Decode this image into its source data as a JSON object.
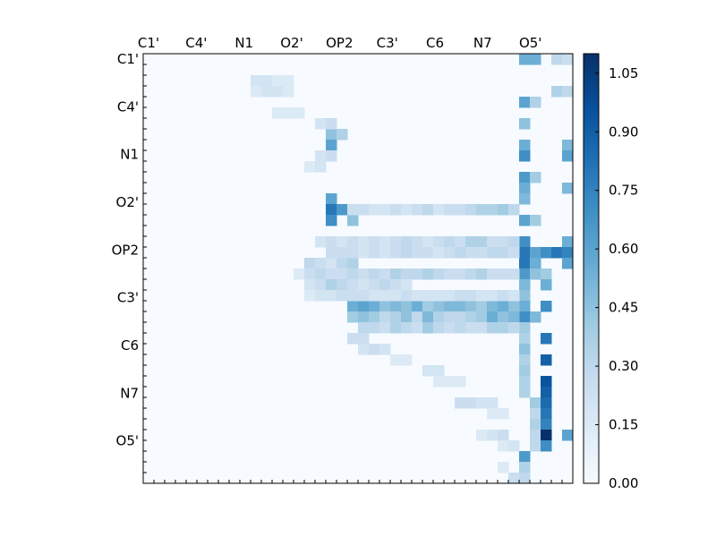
{
  "chart_data": {
    "type": "heatmap",
    "title": "",
    "xlabel": "",
    "ylabel": "",
    "size": 40,
    "atoms_per_label": 4.4444,
    "row_labels": [
      "C1'",
      "C4'",
      "N1",
      "O2'",
      "OP2",
      "C3'",
      "C6",
      "N7",
      "O5'"
    ],
    "col_labels": [
      "C1'",
      "C4'",
      "N1",
      "O2'",
      "OP2",
      "C3'",
      "C6",
      "N7",
      "O5'"
    ],
    "colormap": "Blues",
    "vmin": 0.0,
    "vmax": 1.1,
    "colorbar_ticks": [
      0.0,
      0.15,
      0.3,
      0.45,
      0.6,
      0.75,
      0.9,
      1.05
    ],
    "colorbar_tick_labels": [
      "0.00",
      "0.15",
      "0.30",
      "0.45",
      "0.60",
      "0.75",
      "0.90",
      "1.05"
    ],
    "cells": [
      [
        1,
        35,
        0.55
      ],
      [
        1,
        36,
        0.55
      ],
      [
        1,
        38,
        0.3
      ],
      [
        1,
        39,
        0.25
      ],
      [
        4,
        38,
        0.35
      ],
      [
        4,
        39,
        0.3
      ],
      [
        5,
        35,
        0.6
      ],
      [
        5,
        36,
        0.35
      ],
      [
        7,
        35,
        0.45
      ],
      [
        9,
        35,
        0.55
      ],
      [
        9,
        39,
        0.5
      ],
      [
        10,
        35,
        0.7
      ],
      [
        10,
        39,
        0.6
      ],
      [
        12,
        35,
        0.65
      ],
      [
        12,
        36,
        0.4
      ],
      [
        13,
        35,
        0.55
      ],
      [
        13,
        39,
        0.5
      ],
      [
        14,
        35,
        0.5
      ],
      [
        16,
        35,
        0.6
      ],
      [
        16,
        36,
        0.4
      ],
      [
        18,
        35,
        0.7
      ],
      [
        18,
        39,
        0.55
      ],
      [
        19,
        35,
        0.8
      ],
      [
        19,
        36,
        0.6
      ],
      [
        19,
        37,
        0.7
      ],
      [
        19,
        38,
        0.8
      ],
      [
        19,
        39,
        0.75
      ],
      [
        20,
        35,
        0.8
      ],
      [
        20,
        36,
        0.55
      ],
      [
        20,
        39,
        0.6
      ],
      [
        21,
        35,
        0.65
      ],
      [
        21,
        36,
        0.45
      ],
      [
        21,
        37,
        0.4
      ],
      [
        22,
        35,
        0.5
      ],
      [
        22,
        37,
        0.55
      ],
      [
        23,
        35,
        0.45
      ],
      [
        24,
        35,
        0.55
      ],
      [
        24,
        37,
        0.7
      ],
      [
        25,
        35,
        0.7
      ],
      [
        25,
        36,
        0.5
      ],
      [
        26,
        35,
        0.4
      ],
      [
        27,
        35,
        0.35
      ],
      [
        27,
        37,
        0.8
      ],
      [
        28,
        35,
        0.45
      ],
      [
        29,
        35,
        0.35
      ],
      [
        29,
        37,
        0.9
      ],
      [
        30,
        35,
        0.4
      ],
      [
        31,
        35,
        0.35
      ],
      [
        31,
        37,
        0.95
      ],
      [
        32,
        35,
        0.35
      ],
      [
        32,
        37,
        0.9
      ],
      [
        33,
        36,
        0.4
      ],
      [
        33,
        37,
        0.85
      ],
      [
        34,
        36,
        0.3
      ],
      [
        34,
        37,
        0.8
      ],
      [
        35,
        36,
        0.35
      ],
      [
        35,
        37,
        0.75
      ],
      [
        36,
        36,
        0.3
      ],
      [
        36,
        37,
        1.1
      ],
      [
        36,
        39,
        0.6
      ],
      [
        37,
        36,
        0.3
      ],
      [
        37,
        37,
        0.7
      ],
      [
        38,
        35,
        0.65
      ],
      [
        39,
        35,
        0.35
      ],
      [
        40,
        34,
        0.25
      ],
      [
        40,
        35,
        0.3
      ],
      [
        41,
        35,
        0.55
      ],
      [
        41,
        37,
        1.1
      ],
      [
        41,
        38,
        0.7
      ],
      [
        8,
        17,
        0.45
      ],
      [
        8,
        18,
        0.35
      ],
      [
        9,
        17,
        0.6
      ],
      [
        14,
        17,
        0.6
      ],
      [
        15,
        17,
        0.8
      ],
      [
        15,
        18,
        0.65
      ],
      [
        15,
        29,
        0.55
      ],
      [
        16,
        17,
        0.7
      ],
      [
        16,
        19,
        0.45
      ],
      [
        20,
        15,
        0.3
      ],
      [
        20,
        16,
        0.25
      ],
      [
        20,
        17,
        0.2
      ],
      [
        20,
        18,
        0.3
      ],
      [
        20,
        19,
        0.35
      ],
      [
        24,
        19,
        0.55
      ],
      [
        24,
        20,
        0.6
      ],
      [
        24,
        21,
        0.55
      ],
      [
        24,
        22,
        0.45
      ],
      [
        24,
        23,
        0.5
      ],
      [
        24,
        24,
        0.45
      ],
      [
        24,
        25,
        0.55
      ],
      [
        24,
        26,
        0.4
      ],
      [
        24,
        27,
        0.45
      ],
      [
        24,
        28,
        0.5
      ],
      [
        24,
        29,
        0.5
      ],
      [
        24,
        30,
        0.45
      ],
      [
        24,
        31,
        0.4
      ],
      [
        24,
        32,
        0.5
      ],
      [
        24,
        33,
        0.55
      ],
      [
        24,
        34,
        0.45
      ],
      [
        25,
        19,
        0.4
      ],
      [
        25,
        20,
        0.45
      ],
      [
        25,
        21,
        0.4
      ],
      [
        25,
        22,
        0.3
      ],
      [
        25,
        23,
        0.35
      ],
      [
        25,
        24,
        0.45
      ],
      [
        25,
        25,
        0.3
      ],
      [
        25,
        26,
        0.5
      ],
      [
        25,
        27,
        0.35
      ],
      [
        25,
        28,
        0.3
      ],
      [
        25,
        29,
        0.3
      ],
      [
        25,
        30,
        0.35
      ],
      [
        25,
        31,
        0.4
      ],
      [
        25,
        32,
        0.55
      ],
      [
        25,
        33,
        0.45
      ],
      [
        25,
        34,
        0.5
      ],
      [
        26,
        20,
        0.3
      ],
      [
        26,
        21,
        0.3
      ],
      [
        26,
        22,
        0.25
      ],
      [
        26,
        23,
        0.35
      ],
      [
        26,
        24,
        0.3
      ],
      [
        26,
        25,
        0.25
      ],
      [
        26,
        26,
        0.4
      ],
      [
        26,
        27,
        0.3
      ],
      [
        26,
        28,
        0.25
      ],
      [
        26,
        29,
        0.3
      ],
      [
        26,
        30,
        0.25
      ],
      [
        26,
        31,
        0.25
      ],
      [
        26,
        32,
        0.35
      ],
      [
        26,
        33,
        0.35
      ],
      [
        26,
        34,
        0.3
      ],
      [
        27,
        19,
        0.25
      ],
      [
        27,
        20,
        0.25
      ],
      [
        28,
        20,
        0.2
      ],
      [
        28,
        21,
        0.25
      ],
      [
        28,
        22,
        0.2
      ],
      [
        15,
        19,
        0.25
      ],
      [
        15,
        20,
        0.25
      ],
      [
        15,
        21,
        0.2
      ],
      [
        15,
        22,
        0.2
      ],
      [
        15,
        23,
        0.25
      ],
      [
        15,
        24,
        0.2
      ],
      [
        15,
        25,
        0.25
      ],
      [
        15,
        26,
        0.3
      ],
      [
        15,
        27,
        0.2
      ],
      [
        15,
        28,
        0.25
      ],
      [
        15,
        29,
        0.25
      ],
      [
        15,
        30,
        0.3
      ],
      [
        15,
        31,
        0.35
      ],
      [
        15,
        32,
        0.35
      ],
      [
        15,
        33,
        0.4
      ],
      [
        15,
        34,
        0.3
      ],
      [
        18,
        16,
        0.2
      ],
      [
        18,
        17,
        0.25
      ],
      [
        18,
        18,
        0.2
      ],
      [
        18,
        19,
        0.25
      ],
      [
        18,
        20,
        0.2
      ],
      [
        18,
        21,
        0.25
      ],
      [
        18,
        22,
        0.2
      ],
      [
        18,
        23,
        0.25
      ],
      [
        18,
        24,
        0.3
      ],
      [
        18,
        25,
        0.25
      ],
      [
        18,
        26,
        0.2
      ],
      [
        18,
        27,
        0.25
      ],
      [
        18,
        28,
        0.3
      ],
      [
        18,
        29,
        0.25
      ],
      [
        18,
        30,
        0.35
      ],
      [
        18,
        31,
        0.35
      ],
      [
        18,
        32,
        0.25
      ],
      [
        18,
        33,
        0.25
      ],
      [
        18,
        34,
        0.3
      ],
      [
        21,
        14,
        0.15
      ],
      [
        21,
        15,
        0.25
      ],
      [
        21,
        16,
        0.3
      ],
      [
        21,
        17,
        0.25
      ],
      [
        21,
        18,
        0.25
      ],
      [
        21,
        19,
        0.3
      ],
      [
        21,
        20,
        0.25
      ],
      [
        21,
        21,
        0.3
      ],
      [
        21,
        22,
        0.25
      ],
      [
        21,
        23,
        0.35
      ],
      [
        21,
        24,
        0.3
      ],
      [
        21,
        25,
        0.3
      ],
      [
        21,
        26,
        0.35
      ],
      [
        21,
        27,
        0.3
      ],
      [
        21,
        28,
        0.25
      ],
      [
        21,
        29,
        0.25
      ],
      [
        21,
        30,
        0.3
      ],
      [
        21,
        31,
        0.35
      ],
      [
        21,
        32,
        0.25
      ],
      [
        21,
        33,
        0.25
      ],
      [
        21,
        34,
        0.25
      ],
      [
        22,
        15,
        0.2
      ],
      [
        22,
        16,
        0.25
      ],
      [
        22,
        17,
        0.35
      ],
      [
        22,
        18,
        0.3
      ],
      [
        22,
        19,
        0.25
      ],
      [
        22,
        20,
        0.2
      ],
      [
        22,
        21,
        0.25
      ],
      [
        22,
        22,
        0.3
      ],
      [
        22,
        23,
        0.25
      ],
      [
        22,
        24,
        0.2
      ],
      [
        3,
        10,
        0.2
      ],
      [
        3,
        11,
        0.2
      ],
      [
        3,
        12,
        0.15
      ],
      [
        3,
        13,
        0.15
      ],
      [
        4,
        10,
        0.15
      ],
      [
        4,
        11,
        0.2
      ],
      [
        4,
        12,
        0.2
      ],
      [
        4,
        13,
        0.15
      ],
      [
        6,
        12,
        0.15
      ],
      [
        6,
        13,
        0.15
      ],
      [
        6,
        14,
        0.15
      ],
      [
        7,
        16,
        0.2
      ],
      [
        7,
        17,
        0.25
      ],
      [
        10,
        16,
        0.2
      ],
      [
        10,
        17,
        0.25
      ],
      [
        11,
        15,
        0.15
      ],
      [
        11,
        16,
        0.2
      ],
      [
        19,
        17,
        0.25
      ],
      [
        19,
        18,
        0.25
      ],
      [
        19,
        19,
        0.25
      ],
      [
        19,
        20,
        0.2
      ],
      [
        19,
        21,
        0.25
      ],
      [
        19,
        22,
        0.2
      ],
      [
        19,
        23,
        0.25
      ],
      [
        19,
        24,
        0.3
      ],
      [
        19,
        25,
        0.25
      ],
      [
        19,
        26,
        0.25
      ],
      [
        19,
        27,
        0.2
      ],
      [
        19,
        28,
        0.25
      ],
      [
        19,
        29,
        0.3
      ],
      [
        19,
        30,
        0.25
      ],
      [
        19,
        31,
        0.25
      ],
      [
        19,
        32,
        0.3
      ],
      [
        19,
        33,
        0.3
      ],
      [
        19,
        34,
        0.25
      ],
      [
        23,
        15,
        0.15
      ],
      [
        23,
        16,
        0.2
      ],
      [
        23,
        17,
        0.2
      ],
      [
        23,
        18,
        0.25
      ],
      [
        23,
        19,
        0.25
      ],
      [
        23,
        20,
        0.25
      ],
      [
        23,
        21,
        0.2
      ],
      [
        23,
        22,
        0.2
      ],
      [
        23,
        23,
        0.2
      ],
      [
        23,
        24,
        0.25
      ],
      [
        23,
        25,
        0.2
      ],
      [
        23,
        26,
        0.2
      ],
      [
        23,
        27,
        0.2
      ],
      [
        23,
        28,
        0.2
      ],
      [
        23,
        29,
        0.25
      ],
      [
        23,
        30,
        0.25
      ],
      [
        23,
        31,
        0.2
      ],
      [
        23,
        32,
        0.2
      ],
      [
        23,
        33,
        0.25
      ],
      [
        23,
        34,
        0.2
      ],
      [
        29,
        23,
        0.15
      ],
      [
        29,
        24,
        0.15
      ],
      [
        30,
        26,
        0.2
      ],
      [
        30,
        27,
        0.2
      ],
      [
        31,
        27,
        0.15
      ],
      [
        31,
        28,
        0.15
      ],
      [
        31,
        29,
        0.15
      ],
      [
        33,
        29,
        0.25
      ],
      [
        33,
        30,
        0.25
      ],
      [
        33,
        31,
        0.2
      ],
      [
        33,
        32,
        0.2
      ],
      [
        34,
        32,
        0.15
      ],
      [
        34,
        33,
        0.15
      ],
      [
        36,
        31,
        0.15
      ],
      [
        36,
        32,
        0.2
      ],
      [
        36,
        33,
        0.25
      ],
      [
        37,
        33,
        0.15
      ],
      [
        37,
        34,
        0.2
      ],
      [
        39,
        33,
        0.15
      ]
    ]
  }
}
